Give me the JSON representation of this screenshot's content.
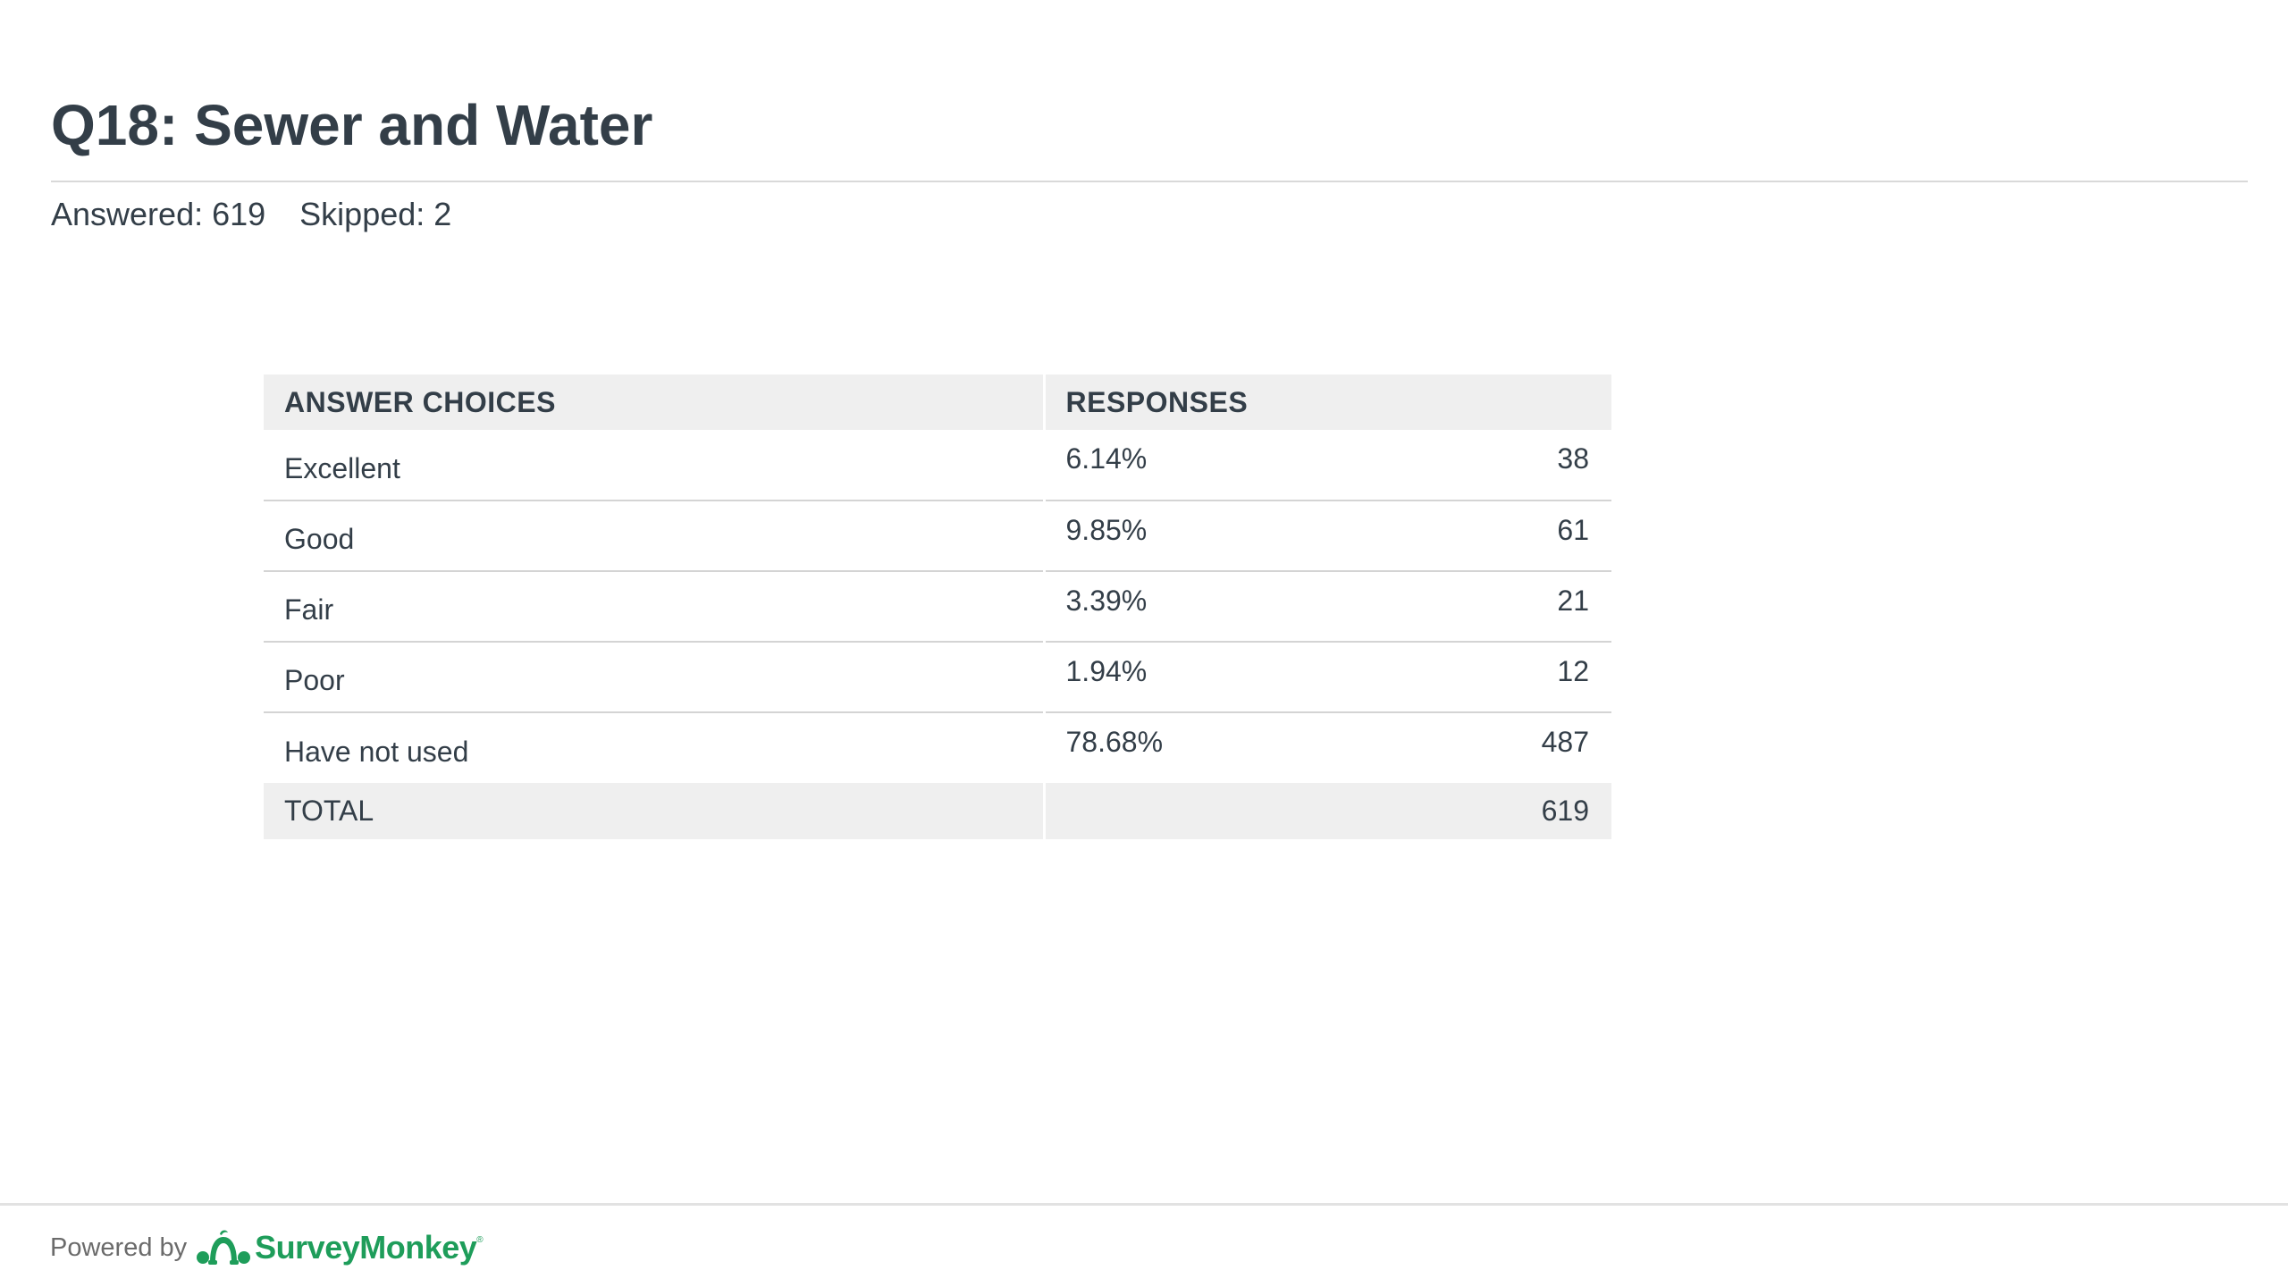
{
  "question": {
    "title": "Q18: Sewer and Water",
    "answered_label": "Answered: 619",
    "skipped_label": "Skipped: 2"
  },
  "table": {
    "headers": {
      "choices": "ANSWER CHOICES",
      "responses": "RESPONSES"
    },
    "rows": [
      {
        "choice": "Excellent",
        "percent": "6.14%",
        "count": "38"
      },
      {
        "choice": "Good",
        "percent": "9.85%",
        "count": "61"
      },
      {
        "choice": "Fair",
        "percent": "3.39%",
        "count": "21"
      },
      {
        "choice": "Poor",
        "percent": "1.94%",
        "count": "12"
      },
      {
        "choice": "Have not used",
        "percent": "78.68%",
        "count": "487"
      }
    ],
    "total": {
      "label": "TOTAL",
      "count": "619"
    }
  },
  "footer": {
    "powered_by": "Powered by",
    "brand": "SurveyMonkey",
    "brand_mark": "®",
    "brand_icon": "surveymonkey-logo-icon",
    "brand_color": "#1e9d5a"
  }
}
